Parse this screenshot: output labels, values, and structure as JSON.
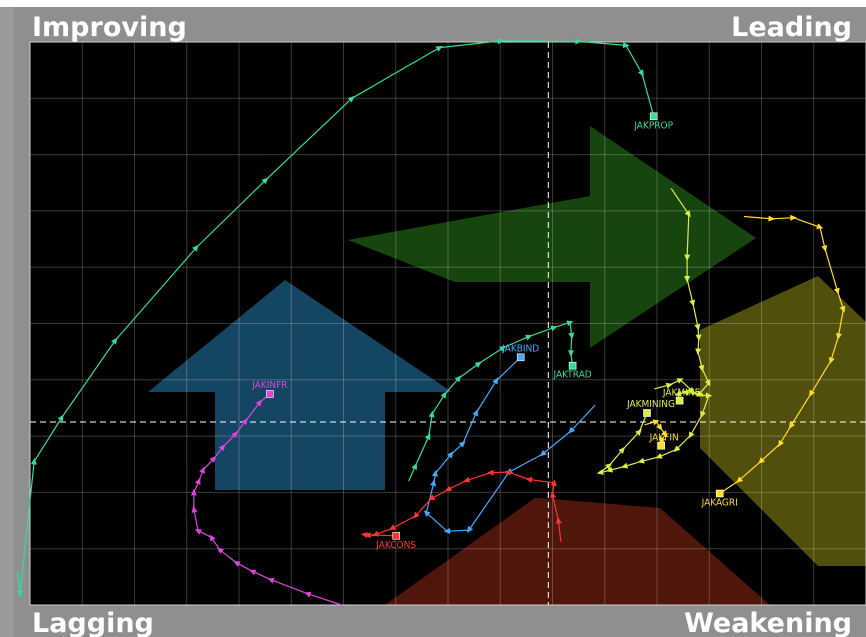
{
  "chart_data": {
    "type": "line",
    "chart_style": "relative rotation graph",
    "quadrants": {
      "top_left": "Improving",
      "top_right": "Leading",
      "bottom_left": "Lagging",
      "bottom_right": "Weakening"
    },
    "axis_range": {
      "x": [
        0,
        100
      ],
      "y": [
        0,
        100
      ]
    },
    "center": {
      "x": 62,
      "y": 32.5
    },
    "grid": true,
    "quadrant_colors": {
      "improving": "#1b5e86",
      "leading": "#1d5c12",
      "weakening": "#6e6a12",
      "lagging": "#6a1e0f"
    },
    "series": [
      {
        "name": "JAKPROP",
        "color": "#33dd99",
        "points": [
          [
            -1.5,
            6
          ],
          [
            -1.2,
            2
          ],
          [
            0.5,
            25.5
          ],
          [
            3.8,
            33.3
          ],
          [
            10.2,
            47
          ],
          [
            19.9,
            63.5
          ],
          [
            28.2,
            75.5
          ],
          [
            38.5,
            90
          ],
          [
            49,
            99
          ],
          [
            56.3,
            100.2
          ],
          [
            65.6,
            100.1
          ],
          [
            71.3,
            99.4
          ],
          [
            73.2,
            94.4
          ],
          [
            74.6,
            86.8
          ]
        ]
      },
      {
        "name": "JAKTRAD",
        "color": "#33dd99",
        "points": [
          [
            45.3,
            22
          ],
          [
            46.1,
            24.7
          ],
          [
            47.7,
            30
          ],
          [
            48.1,
            33.9
          ],
          [
            49.6,
            37.4
          ],
          [
            51.3,
            40.3
          ],
          [
            53.7,
            42.9
          ],
          [
            56.6,
            45.7
          ],
          [
            59.7,
            47.7
          ],
          [
            62.7,
            49.3
          ],
          [
            64.6,
            50.2
          ],
          [
            64.8,
            47.8
          ],
          [
            64.7,
            44.7
          ],
          [
            64.9,
            42.5
          ]
        ]
      },
      {
        "name": "JAKBIND",
        "color": "#44aaff",
        "points": [
          [
            67.6,
            35.5
          ],
          [
            64.7,
            30.9
          ],
          [
            61.3,
            26.8
          ],
          [
            57.3,
            23.6
          ],
          [
            52.5,
            13.3
          ],
          [
            49.9,
            13.1
          ],
          [
            47.4,
            16.4
          ],
          [
            48.3,
            21.7
          ],
          [
            48.5,
            23.4
          ],
          [
            50.4,
            26.8
          ],
          [
            51.8,
            28.7
          ],
          [
            53.4,
            34.2
          ],
          [
            55.8,
            39.9
          ],
          [
            58.7,
            44
          ]
        ]
      },
      {
        "name": "JAKCONS",
        "color": "#ff3333",
        "points": [
          [
            63.5,
            11.2
          ],
          [
            63.2,
            15
          ],
          [
            62.5,
            19.6
          ],
          [
            62.7,
            21.7
          ],
          [
            59.7,
            22.3
          ],
          [
            57.2,
            23.6
          ],
          [
            55.1,
            23.5
          ],
          [
            52.2,
            22.1
          ],
          [
            50,
            20.5
          ],
          [
            48,
            18.9
          ],
          [
            46.1,
            15.8
          ],
          [
            43.3,
            13.6
          ],
          [
            41.3,
            12.5
          ],
          [
            40.4,
            12.4
          ],
          [
            40,
            12.5
          ],
          [
            43.8,
            12.3
          ]
        ]
      },
      {
        "name": "JAKINFR",
        "color": "#dd44dd",
        "points": [
          [
            37.3,
            0
          ],
          [
            33.2,
            2
          ],
          [
            28.8,
            4.5
          ],
          [
            26.6,
            6
          ],
          [
            24.7,
            7.5
          ],
          [
            22.7,
            9.8
          ],
          [
            21.7,
            12
          ],
          [
            20.1,
            13.2
          ],
          [
            19.6,
            17
          ],
          [
            19.6,
            20
          ],
          [
            20.2,
            22
          ],
          [
            20.7,
            24
          ],
          [
            22,
            26
          ],
          [
            23.1,
            28.1
          ],
          [
            24.6,
            30.4
          ],
          [
            25.8,
            32.7
          ],
          [
            27.5,
            36
          ],
          [
            28.7,
            37.5
          ]
        ]
      },
      {
        "name": "JAKMINING",
        "color": "#ddee44",
        "points": [
          [
            74.7,
            38.4
          ],
          [
            76.5,
            39.1
          ],
          [
            77.8,
            40
          ],
          [
            79.2,
            38
          ],
          [
            80.2,
            37.3
          ],
          [
            81.2,
            37.2
          ],
          [
            80.4,
            33.8
          ],
          [
            79,
            30.1
          ],
          [
            77.3,
            27.6
          ],
          [
            75.2,
            26.3
          ],
          [
            73.1,
            25.5
          ],
          [
            71.1,
            24.6
          ],
          [
            69.3,
            23.9
          ],
          [
            68.2,
            23.5
          ],
          [
            69.3,
            24.8
          ],
          [
            70.9,
            27.6
          ],
          [
            72.9,
            30.8
          ],
          [
            73.8,
            34.1
          ]
        ]
      },
      {
        "name": "JAKMINE",
        "color": "#ddee44",
        "points": [
          [
            76.7,
            74
          ],
          [
            78.8,
            69.4
          ],
          [
            78.6,
            61.7
          ],
          [
            78.6,
            57.9
          ],
          [
            79.3,
            53.6
          ],
          [
            79.9,
            49.3
          ],
          [
            80,
            47.5
          ],
          [
            79.9,
            45
          ],
          [
            80.4,
            42
          ],
          [
            81.2,
            39.4
          ],
          [
            80,
            37.4
          ],
          [
            78.4,
            37.8
          ],
          [
            77.5,
            37.4
          ],
          [
            77.7,
            36.3
          ]
        ]
      },
      {
        "name": "JAKFIN",
        "color": "#ffdd22",
        "points": [
          [
            73.5,
            32
          ],
          [
            74.9,
            32.6
          ],
          [
            75.4,
            31.5
          ],
          [
            76,
            30.3
          ],
          [
            75.5,
            29.2
          ],
          [
            75.6,
            28.5
          ],
          [
            75.5,
            28.3
          ]
        ]
      },
      {
        "name": "JAKAGRI",
        "color": "#ffdd22",
        "points": [
          [
            85.4,
            69
          ],
          [
            88.7,
            68.6
          ],
          [
            91.3,
            68.8
          ],
          [
            94.5,
            67.1
          ],
          [
            95.1,
            63.3
          ],
          [
            96.6,
            55.7
          ],
          [
            97.3,
            52.5
          ],
          [
            96.7,
            47.7
          ],
          [
            95.8,
            43.4
          ],
          [
            93.4,
            37.5
          ],
          [
            91,
            31.8
          ],
          [
            89.7,
            28.6
          ],
          [
            87.4,
            25.5
          ],
          [
            84.8,
            22.1
          ],
          [
            82.5,
            19.8
          ]
        ]
      }
    ]
  }
}
